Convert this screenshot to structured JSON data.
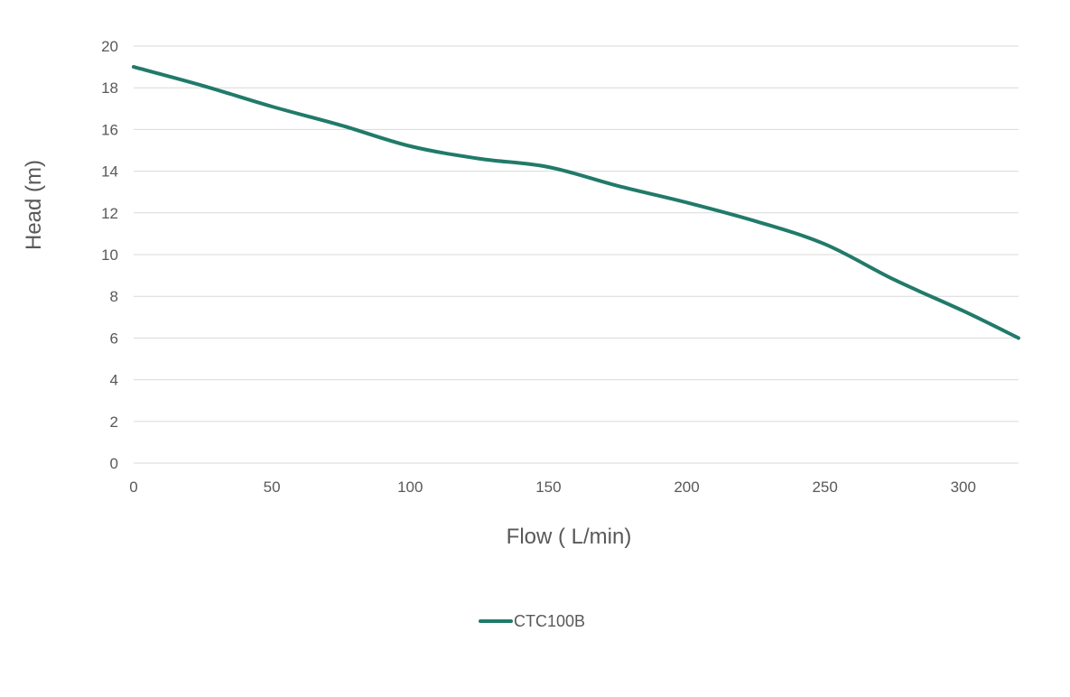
{
  "chart_data": {
    "type": "line",
    "xlabel": "Flow ( L/min)",
    "ylabel": "Head (m)",
    "xlim": [
      0,
      320
    ],
    "ylim": [
      0,
      20
    ],
    "x_ticks": [
      0,
      50,
      100,
      150,
      200,
      250,
      300
    ],
    "y_ticks": [
      0,
      2,
      4,
      6,
      8,
      10,
      12,
      14,
      16,
      18,
      20
    ],
    "grid": "horizontal",
    "legend_position": "bottom",
    "series": [
      {
        "name": "CTC100B",
        "color": "#217a6a",
        "x": [
          0,
          25,
          50,
          75,
          100,
          125,
          150,
          175,
          200,
          225,
          250,
          275,
          300,
          320
        ],
        "y": [
          19.0,
          18.1,
          17.1,
          16.2,
          15.2,
          14.6,
          14.2,
          13.3,
          12.5,
          11.6,
          10.5,
          8.8,
          7.3,
          6.0
        ]
      }
    ]
  }
}
